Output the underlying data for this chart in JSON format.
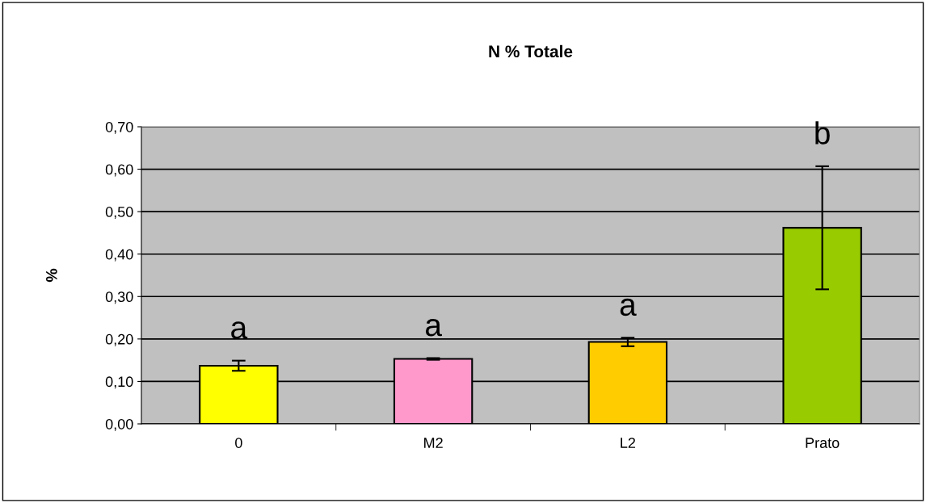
{
  "chart_data": {
    "type": "bar",
    "title": "N % Totale",
    "ylabel": "%",
    "categories": [
      "0",
      "M2",
      "L2",
      "Prato"
    ],
    "values": [
      0.137,
      0.153,
      0.193,
      0.462
    ],
    "errors": [
      0.012,
      0.002,
      0.01,
      0.145
    ],
    "colors": [
      "#ffff00",
      "#ff99cc",
      "#ffcc00",
      "#99cc00"
    ],
    "ylim": [
      0,
      0.7
    ],
    "yticks": [
      {
        "value": 0,
        "label": "0,00"
      },
      {
        "value": 0.1,
        "label": "0,10"
      },
      {
        "value": 0.2,
        "label": "0,20"
      },
      {
        "value": 0.3,
        "label": "0,30"
      },
      {
        "value": 0.4,
        "label": "0,40"
      },
      {
        "value": 0.5,
        "label": "0,50"
      },
      {
        "value": 0.6,
        "label": "0,60"
      },
      {
        "value": 0.7,
        "label": "0,70"
      }
    ],
    "grid": "y",
    "legend": false,
    "annotations": [
      "a",
      "a",
      "a",
      "b"
    ]
  }
}
